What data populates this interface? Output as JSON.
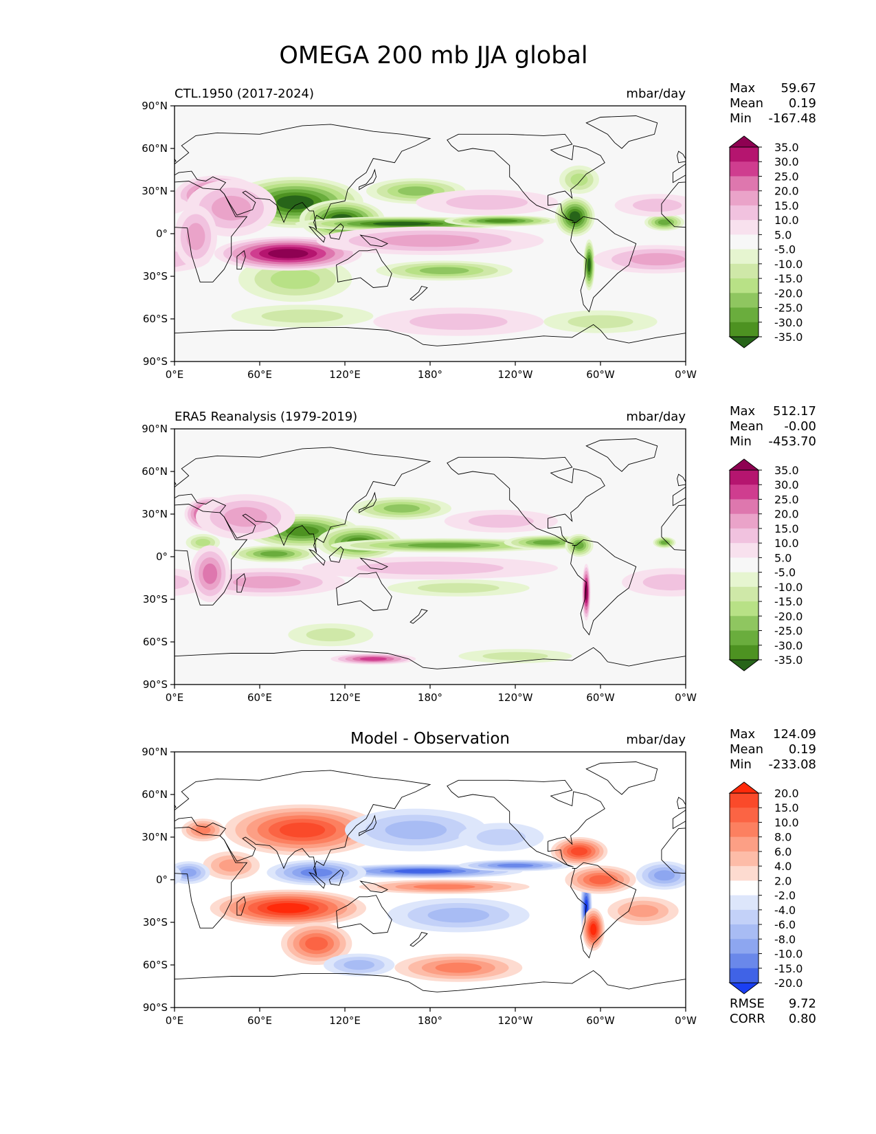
{
  "figure_title": "OMEGA 200 mb JJA global",
  "chart_data": [
    {
      "type": "heatmap",
      "panel": "model",
      "left_title": "CTL.1950 (2017-2024)",
      "center_title": "",
      "units": "mbar/day",
      "stats": [
        {
          "label": "Max",
          "value": "59.67"
        },
        {
          "label": "Mean",
          "value": "0.19"
        },
        {
          "label": "Min",
          "value": "-167.48"
        }
      ],
      "colorbar": {
        "extend": "both",
        "tick_labels": [
          "35.0",
          "30.0",
          "25.0",
          "20.0",
          "15.0",
          "10.0",
          "5.0",
          "-5.0",
          "-10.0",
          "-15.0",
          "-20.0",
          "-25.0",
          "-30.0",
          "-35.0"
        ],
        "colors": [
          "#8e0152",
          "#b5156f",
          "#cf3d8f",
          "#de77ae",
          "#eaa3c9",
          "#f1c2df",
          "#f8e1ee",
          "#f7f7f7",
          "#e6f5d0",
          "#cfe8a8",
          "#b8e186",
          "#8fc660",
          "#6aad3d",
          "#4d9221",
          "#276419"
        ]
      },
      "x_ticks": [
        "0°E",
        "60°E",
        "120°E",
        "180°",
        "120°W",
        "60°W",
        "0°W"
      ],
      "y_ticks": [
        "90°N",
        "60°N",
        "30°N",
        "0°",
        "30°S",
        "60°S",
        "90°S"
      ],
      "xlim": [
        0,
        360
      ],
      "ylim": [
        -90,
        90
      ],
      "features": [
        {
          "lon": 85,
          "lat": 22,
          "rx": 48,
          "ry": 18,
          "v": -40
        },
        {
          "lon": 118,
          "lat": 10,
          "rx": 30,
          "ry": 14,
          "v": -38
        },
        {
          "lon": 160,
          "lat": 7,
          "rx": 75,
          "ry": 5,
          "v": -33
        },
        {
          "lon": 230,
          "lat": 9,
          "rx": 40,
          "ry": 4,
          "v": -30
        },
        {
          "lon": 282,
          "lat": 12,
          "rx": 14,
          "ry": 14,
          "v": -32
        },
        {
          "lon": 292,
          "lat": -22,
          "rx": 4,
          "ry": 18,
          "v": -40
        },
        {
          "lon": 345,
          "lat": 8,
          "rx": 14,
          "ry": 6,
          "v": -25
        },
        {
          "lon": 170,
          "lat": 30,
          "rx": 35,
          "ry": 9,
          "v": -20
        },
        {
          "lon": 285,
          "lat": 38,
          "rx": 14,
          "ry": 10,
          "v": -15
        },
        {
          "lon": 190,
          "lat": -26,
          "rx": 48,
          "ry": 7,
          "v": -17
        },
        {
          "lon": 85,
          "lat": -32,
          "rx": 40,
          "ry": 16,
          "v": -12
        },
        {
          "lon": 90,
          "lat": -58,
          "rx": 50,
          "ry": 8,
          "v": -8
        },
        {
          "lon": 300,
          "lat": -62,
          "rx": 40,
          "ry": 8,
          "v": -8
        },
        {
          "lon": 80,
          "lat": -14,
          "rx": 52,
          "ry": 12,
          "v": 45
        },
        {
          "lon": 30,
          "lat": 27,
          "rx": 30,
          "ry": 14,
          "v": 28
        },
        {
          "lon": 40,
          "lat": 18,
          "rx": 32,
          "ry": 20,
          "v": 15
        },
        {
          "lon": 180,
          "lat": -5,
          "rx": 80,
          "ry": 10,
          "v": 13
        },
        {
          "lon": 340,
          "lat": -18,
          "rx": 45,
          "ry": 10,
          "v": 15
        },
        {
          "lon": 220,
          "lat": 22,
          "rx": 50,
          "ry": 9,
          "v": 10
        },
        {
          "lon": 340,
          "lat": 20,
          "rx": 30,
          "ry": 8,
          "v": 10
        },
        {
          "lon": 15,
          "lat": -2,
          "rx": 15,
          "ry": 22,
          "v": 12
        },
        {
          "lon": 200,
          "lat": -62,
          "rx": 60,
          "ry": 10,
          "v": 6
        }
      ]
    },
    {
      "type": "heatmap",
      "panel": "observation",
      "left_title": "ERA5 Reanalysis (1979-2019)",
      "center_title": "",
      "units": "mbar/day",
      "stats": [
        {
          "label": "Max",
          "value": "512.17"
        },
        {
          "label": "Mean",
          "value": "-0.00"
        },
        {
          "label": "Min",
          "value": "-453.70"
        }
      ],
      "colorbar": {
        "extend": "both",
        "tick_labels": [
          "35.0",
          "30.0",
          "25.0",
          "20.0",
          "15.0",
          "10.0",
          "5.0",
          "-5.0",
          "-10.0",
          "-15.0",
          "-20.0",
          "-25.0",
          "-30.0",
          "-35.0"
        ],
        "colors": [
          "#8e0152",
          "#b5156f",
          "#cf3d8f",
          "#de77ae",
          "#eaa3c9",
          "#f1c2df",
          "#f8e1ee",
          "#f7f7f7",
          "#e6f5d0",
          "#cfe8a8",
          "#b8e186",
          "#8fc660",
          "#6aad3d",
          "#4d9221",
          "#276419"
        ]
      },
      "x_ticks": [
        "0°E",
        "60°E",
        "120°E",
        "180°",
        "120°W",
        "60°W",
        "0°W"
      ],
      "y_ticks": [
        "90°N",
        "60°N",
        "30°N",
        "0°",
        "30°S",
        "60°S",
        "90°S"
      ],
      "xlim": [
        0,
        360
      ],
      "ylim": [
        -90,
        90
      ],
      "features": [
        {
          "lon": 90,
          "lat": 18,
          "rx": 40,
          "ry": 12,
          "v": -30
        },
        {
          "lon": 130,
          "lat": 10,
          "rx": 30,
          "ry": 12,
          "v": -28
        },
        {
          "lon": 190,
          "lat": 8,
          "rx": 80,
          "ry": 5,
          "v": -25
        },
        {
          "lon": 262,
          "lat": 10,
          "rx": 30,
          "ry": 5,
          "v": -22
        },
        {
          "lon": 285,
          "lat": 8,
          "rx": 10,
          "ry": 8,
          "v": -25
        },
        {
          "lon": 70,
          "lat": 2,
          "rx": 30,
          "ry": 6,
          "v": -22
        },
        {
          "lon": 160,
          "lat": 34,
          "rx": 35,
          "ry": 8,
          "v": -18
        },
        {
          "lon": 345,
          "lat": 10,
          "rx": 8,
          "ry": 4,
          "v": -25
        },
        {
          "lon": 20,
          "lat": 10,
          "rx": 12,
          "ry": 6,
          "v": -15
        },
        {
          "lon": 110,
          "lat": -55,
          "rx": 30,
          "ry": 8,
          "v": -10
        },
        {
          "lon": 200,
          "lat": -22,
          "rx": 50,
          "ry": 6,
          "v": -10
        },
        {
          "lon": 240,
          "lat": -70,
          "rx": 40,
          "ry": 5,
          "v": -8
        },
        {
          "lon": 25,
          "lat": 30,
          "rx": 18,
          "ry": 12,
          "v": 40
        },
        {
          "lon": 50,
          "lat": 28,
          "rx": 35,
          "ry": 16,
          "v": 15
        },
        {
          "lon": 65,
          "lat": -18,
          "rx": 55,
          "ry": 10,
          "v": 12
        },
        {
          "lon": 180,
          "lat": -8,
          "rx": 90,
          "ry": 8,
          "v": 9
        },
        {
          "lon": 350,
          "lat": -18,
          "rx": 35,
          "ry": 10,
          "v": 8
        },
        {
          "lon": 230,
          "lat": 25,
          "rx": 40,
          "ry": 8,
          "v": 8
        },
        {
          "lon": 290,
          "lat": -25,
          "rx": 3,
          "ry": 20,
          "v": 40
        },
        {
          "lon": 25,
          "lat": -12,
          "rx": 14,
          "ry": 20,
          "v": 18
        },
        {
          "lon": 140,
          "lat": -72,
          "rx": 30,
          "ry": 4,
          "v": 25
        }
      ]
    },
    {
      "type": "heatmap",
      "panel": "difference",
      "left_title": "",
      "center_title": "Model - Observation",
      "units": "mbar/day",
      "stats": [
        {
          "label": "Max",
          "value": "124.09"
        },
        {
          "label": "Mean",
          "value": "0.19"
        },
        {
          "label": "Min",
          "value": "-233.08"
        }
      ],
      "extra_stats": [
        {
          "label": "RMSE",
          "value": "9.72"
        },
        {
          "label": "CORR",
          "value": "0.80"
        }
      ],
      "colorbar": {
        "extend": "both",
        "tick_labels": [
          "20.0",
          "15.0",
          "10.0",
          "8.0",
          "6.0",
          "4.0",
          "2.0",
          "-2.0",
          "-4.0",
          "-6.0",
          "-8.0",
          "-10.0",
          "-15.0",
          "-20.0"
        ],
        "colors": [
          "#ff2a0a",
          "#fa4a2a",
          "#fb6444",
          "#fc8060",
          "#fc9f85",
          "#fdbca8",
          "#fddbd0",
          "#ffffff",
          "#dde6fb",
          "#c3d1f8",
          "#a8bcf4",
          "#8da6f0",
          "#6a88ea",
          "#4063e6",
          "#1a3ff3"
        ]
      },
      "x_ticks": [
        "0°E",
        "60°E",
        "120°E",
        "180°",
        "120°W",
        "60°W",
        "0°W"
      ],
      "y_ticks": [
        "90°N",
        "60°N",
        "30°N",
        "0°",
        "30°S",
        "60°S",
        "90°S"
      ],
      "xlim": [
        0,
        360
      ],
      "ylim": [
        -90,
        90
      ],
      "features": [
        {
          "lon": 80,
          "lat": -20,
          "rx": 55,
          "ry": 13,
          "v": 25
        },
        {
          "lon": 100,
          "lat": -45,
          "rx": 25,
          "ry": 15,
          "v": 12
        },
        {
          "lon": 90,
          "lat": 35,
          "rx": 55,
          "ry": 18,
          "v": 15
        },
        {
          "lon": 40,
          "lat": 10,
          "rx": 20,
          "ry": 10,
          "v": 8
        },
        {
          "lon": 20,
          "lat": 35,
          "rx": 15,
          "ry": 8,
          "v": 10
        },
        {
          "lon": 175,
          "lat": 6,
          "rx": 70,
          "ry": 5,
          "v": -15
        },
        {
          "lon": 240,
          "lat": 10,
          "rx": 40,
          "ry": 4,
          "v": -12
        },
        {
          "lon": 100,
          "lat": 5,
          "rx": 35,
          "ry": 9,
          "v": -12
        },
        {
          "lon": 10,
          "lat": 5,
          "rx": 15,
          "ry": 8,
          "v": -10
        },
        {
          "lon": 345,
          "lat": 3,
          "rx": 20,
          "ry": 10,
          "v": -10
        },
        {
          "lon": 290,
          "lat": -20,
          "rx": 4,
          "ry": 22,
          "v": -20
        },
        {
          "lon": 285,
          "lat": 20,
          "rx": 20,
          "ry": 10,
          "v": 15
        },
        {
          "lon": 300,
          "lat": 0,
          "rx": 25,
          "ry": 10,
          "v": 12
        },
        {
          "lon": 190,
          "lat": -5,
          "rx": 60,
          "ry": 5,
          "v": 10
        },
        {
          "lon": 200,
          "lat": -25,
          "rx": 50,
          "ry": 12,
          "v": -6
        },
        {
          "lon": 170,
          "lat": 35,
          "rx": 50,
          "ry": 15,
          "v": -6
        },
        {
          "lon": 200,
          "lat": -62,
          "rx": 45,
          "ry": 10,
          "v": 10
        },
        {
          "lon": 295,
          "lat": -35,
          "rx": 8,
          "ry": 15,
          "v": 18
        },
        {
          "lon": 130,
          "lat": -60,
          "rx": 25,
          "ry": 8,
          "v": -8
        },
        {
          "lon": 330,
          "lat": -22,
          "rx": 25,
          "ry": 10,
          "v": 8
        },
        {
          "lon": 230,
          "lat": 30,
          "rx": 30,
          "ry": 10,
          "v": -5
        }
      ]
    }
  ]
}
